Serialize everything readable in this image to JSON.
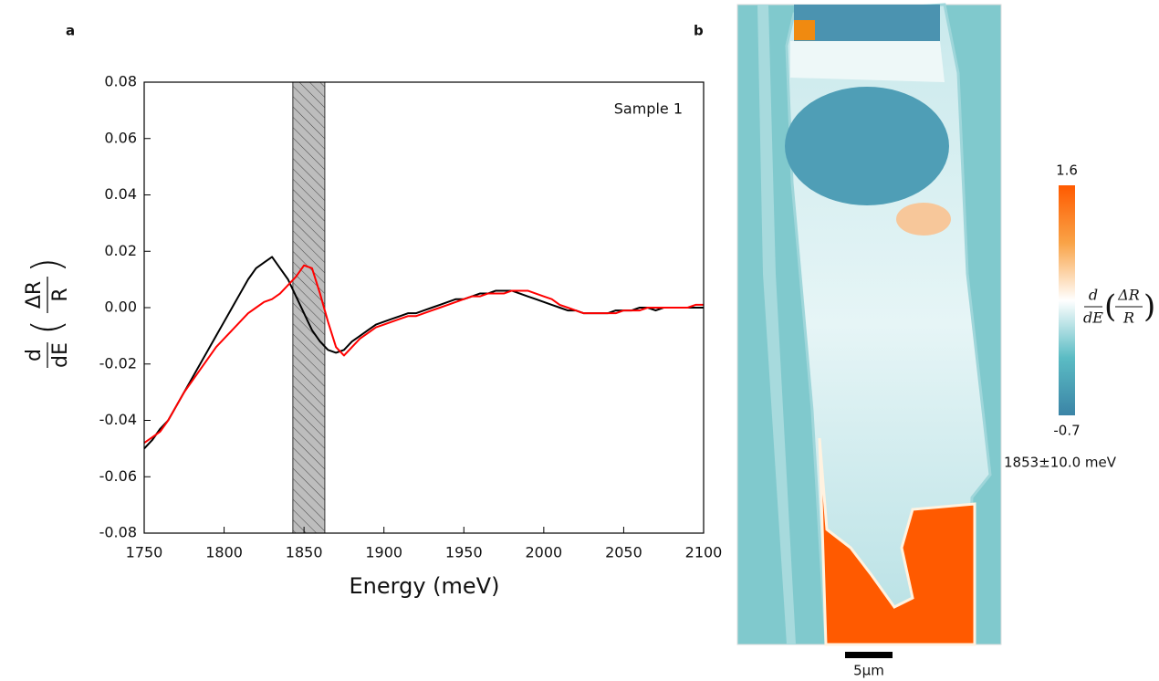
{
  "panel_labels": [
    "a",
    "b"
  ],
  "chart_data": {
    "type": "line",
    "annotation": "Sample 1",
    "x_label": "Energy (meV)",
    "y_label": {
      "numerator": "d",
      "denominator": "dE",
      "inner_numerator": "ΔR",
      "inner_denominator": "R"
    },
    "shaded_region": [
      1843,
      1863
    ],
    "x": [
      1750,
      1755,
      1760,
      1765,
      1770,
      1775,
      1780,
      1785,
      1790,
      1795,
      1800,
      1805,
      1810,
      1815,
      1820,
      1825,
      1830,
      1835,
      1840,
      1845,
      1850,
      1855,
      1860,
      1865,
      1870,
      1875,
      1880,
      1885,
      1890,
      1895,
      1900,
      1905,
      1910,
      1915,
      1920,
      1925,
      1930,
      1935,
      1940,
      1945,
      1950,
      1955,
      1960,
      1965,
      1970,
      1975,
      1980,
      1985,
      1990,
      1995,
      2000,
      2005,
      2010,
      2015,
      2020,
      2025,
      2030,
      2035,
      2040,
      2045,
      2050,
      2055,
      2060,
      2065,
      2070,
      2075,
      2080,
      2085,
      2090,
      2095,
      2100
    ],
    "series": [
      {
        "color": "#000000",
        "values": [
          -0.05,
          -0.047,
          -0.043,
          -0.04,
          -0.035,
          -0.03,
          -0.025,
          -0.02,
          -0.015,
          -0.01,
          -0.005,
          0.0,
          0.005,
          0.01,
          0.014,
          0.016,
          0.018,
          0.014,
          0.01,
          0.004,
          -0.002,
          -0.008,
          -0.012,
          -0.015,
          -0.016,
          -0.015,
          -0.012,
          -0.01,
          -0.008,
          -0.006,
          -0.005,
          -0.004,
          -0.003,
          -0.002,
          -0.002,
          -0.001,
          0.0,
          0.001,
          0.002,
          0.003,
          0.003,
          0.004,
          0.005,
          0.005,
          0.006,
          0.006,
          0.006,
          0.005,
          0.004,
          0.003,
          0.002,
          0.001,
          0.0,
          -0.001,
          -0.001,
          -0.002,
          -0.002,
          -0.002,
          -0.002,
          -0.001,
          -0.001,
          -0.001,
          0.0,
          0.0,
          -0.001,
          0.0,
          0.0,
          0.0,
          0.0,
          0.0,
          0.0
        ]
      },
      {
        "color": "#ff0000",
        "values": [
          -0.048,
          -0.046,
          -0.044,
          -0.04,
          -0.035,
          -0.03,
          -0.026,
          -0.022,
          -0.018,
          -0.014,
          -0.011,
          -0.008,
          -0.005,
          -0.002,
          0.0,
          0.002,
          0.003,
          0.005,
          0.008,
          0.011,
          0.015,
          0.014,
          0.005,
          -0.005,
          -0.014,
          -0.017,
          -0.014,
          -0.011,
          -0.009,
          -0.007,
          -0.006,
          -0.005,
          -0.004,
          -0.003,
          -0.003,
          -0.002,
          -0.001,
          0.0,
          0.001,
          0.002,
          0.003,
          0.004,
          0.004,
          0.005,
          0.005,
          0.005,
          0.006,
          0.006,
          0.006,
          0.005,
          0.004,
          0.003,
          0.001,
          0.0,
          -0.001,
          -0.002,
          -0.002,
          -0.002,
          -0.002,
          -0.002,
          -0.001,
          -0.001,
          -0.001,
          0.0,
          0.0,
          0.0,
          0.0,
          0.0,
          0.0,
          0.001,
          0.001
        ]
      }
    ],
    "xlim": [
      1750,
      2100
    ],
    "xticks": [
      1750,
      1800,
      1850,
      1900,
      1950,
      2000,
      2050,
      2100
    ],
    "ylim": [
      -0.08,
      0.08
    ],
    "yticks": [
      -0.08,
      -0.06,
      -0.04,
      -0.02,
      {
        "value": 0,
        "label": "0.00"
      },
      0.02,
      0.04,
      0.06,
      0.08
    ]
  },
  "map": {
    "colorbar": {
      "max": 1.6,
      "min": -0.7,
      "colors": [
        "#ff5a00",
        "#f9a347",
        "#ffffff",
        "#5bbcc4",
        "#3b84a6"
      ],
      "label": {
        "numerator": "d",
        "denominator": "dE",
        "inner_numerator": "ΔR",
        "inner_denominator": "R"
      }
    },
    "energy": "1853±10.0 meV",
    "scale_bar": "5μm"
  }
}
